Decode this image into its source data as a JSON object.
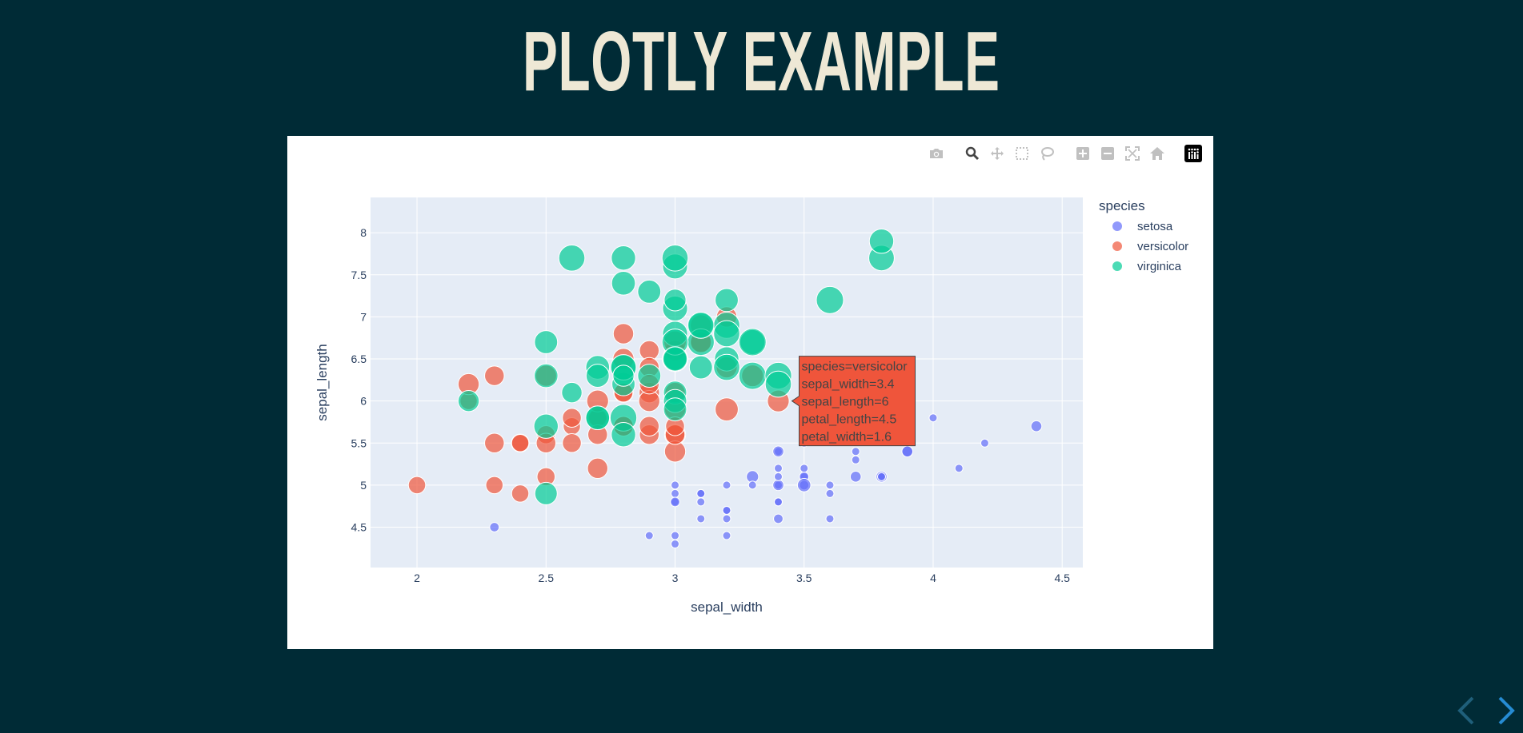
{
  "slide": {
    "title": "PLOTLY EXAMPLE"
  },
  "modebar": {
    "buttons": [
      {
        "name": "camera-icon",
        "title": "Download plot as a png"
      },
      {
        "name": "zoom-icon",
        "title": "Zoom"
      },
      {
        "name": "pan-icon",
        "title": "Pan"
      },
      {
        "name": "box-select-icon",
        "title": "Box Select"
      },
      {
        "name": "lasso-select-icon",
        "title": "Lasso Select"
      },
      {
        "name": "zoom-in-icon",
        "title": "Zoom in"
      },
      {
        "name": "zoom-out-icon",
        "title": "Zoom out"
      },
      {
        "name": "autoscale-icon",
        "title": "Autoscale"
      },
      {
        "name": "reset-axes-icon",
        "title": "Reset axes"
      },
      {
        "name": "plotly-logo-icon",
        "title": "Produced with Plotly"
      }
    ]
  },
  "nav": {
    "prev": "previous-slide-arrow-icon",
    "next": "next-slide-arrow-icon"
  },
  "colors": {
    "background": "#002b36",
    "title": "#eee8d5",
    "plot_bg": "#e5ecf6",
    "setosa": "#636efa",
    "versicolor": "#ef553b",
    "virginica": "#00cc96",
    "arrow_dim": "#1f5f7a",
    "arrow": "#268bd2"
  },
  "chart_data": {
    "type": "scatter",
    "title": "",
    "xlabel": "sepal_width",
    "ylabel": "sepal_length",
    "xlim": [
      1.82,
      4.58
    ],
    "ylim": [
      4.02,
      8.42
    ],
    "xticks": [
      "2",
      "2.5",
      "3",
      "3.5",
      "4",
      "4.5"
    ],
    "yticks": [
      "4.5",
      "5",
      "5.5",
      "6",
      "6.5",
      "7",
      "7.5",
      "8"
    ],
    "legend": {
      "title": "species",
      "placement": "top-right"
    },
    "grid": true,
    "series": [
      {
        "name": "setosa",
        "color": "#636efa",
        "points": [
          [
            3.5,
            5.1,
            0.2
          ],
          [
            3.0,
            4.9,
            0.2
          ],
          [
            3.2,
            4.7,
            0.2
          ],
          [
            3.1,
            4.6,
            0.2
          ],
          [
            3.6,
            5.0,
            0.2
          ],
          [
            3.9,
            5.4,
            0.4
          ],
          [
            3.4,
            4.6,
            0.3
          ],
          [
            3.4,
            5.0,
            0.2
          ],
          [
            2.9,
            4.4,
            0.2
          ],
          [
            3.1,
            4.9,
            0.1
          ],
          [
            3.7,
            5.4,
            0.2
          ],
          [
            3.4,
            4.8,
            0.2
          ],
          [
            3.0,
            4.8,
            0.1
          ],
          [
            3.0,
            4.3,
            0.1
          ],
          [
            4.0,
            5.8,
            0.2
          ],
          [
            4.4,
            5.7,
            0.4
          ],
          [
            3.9,
            5.4,
            0.4
          ],
          [
            3.5,
            5.1,
            0.3
          ],
          [
            3.8,
            5.7,
            0.3
          ],
          [
            3.8,
            5.1,
            0.3
          ],
          [
            3.4,
            5.4,
            0.2
          ],
          [
            3.7,
            5.1,
            0.4
          ],
          [
            3.6,
            4.6,
            0.2
          ],
          [
            3.3,
            5.1,
            0.5
          ],
          [
            3.4,
            4.8,
            0.2
          ],
          [
            3.0,
            5.0,
            0.2
          ],
          [
            3.4,
            5.0,
            0.4
          ],
          [
            3.5,
            5.2,
            0.2
          ],
          [
            3.4,
            5.2,
            0.2
          ],
          [
            3.2,
            4.7,
            0.2
          ],
          [
            3.1,
            4.8,
            0.2
          ],
          [
            3.4,
            5.4,
            0.4
          ],
          [
            4.1,
            5.2,
            0.1
          ],
          [
            4.2,
            5.5,
            0.2
          ],
          [
            3.1,
            4.9,
            0.2
          ],
          [
            3.2,
            5.0,
            0.2
          ],
          [
            3.5,
            5.5,
            0.2
          ],
          [
            3.6,
            4.9,
            0.1
          ],
          [
            3.0,
            4.4,
            0.2
          ],
          [
            3.4,
            5.1,
            0.2
          ],
          [
            3.5,
            5.0,
            0.3
          ],
          [
            2.3,
            4.5,
            0.3
          ],
          [
            3.2,
            4.4,
            0.2
          ],
          [
            3.5,
            5.0,
            0.6
          ],
          [
            3.8,
            5.1,
            0.4
          ],
          [
            3.0,
            4.8,
            0.3
          ],
          [
            3.8,
            5.1,
            0.2
          ],
          [
            3.2,
            4.6,
            0.2
          ],
          [
            3.7,
            5.3,
            0.2
          ],
          [
            3.3,
            5.0,
            0.2
          ]
        ]
      },
      {
        "name": "versicolor",
        "color": "#ef553b",
        "points": [
          [
            3.2,
            7.0,
            1.4
          ],
          [
            3.2,
            6.4,
            1.5
          ],
          [
            3.1,
            6.9,
            1.5
          ],
          [
            2.3,
            5.5,
            1.3
          ],
          [
            2.8,
            6.5,
            1.5
          ],
          [
            2.8,
            5.7,
            1.3
          ],
          [
            3.3,
            6.3,
            1.6
          ],
          [
            2.4,
            4.9,
            1.0
          ],
          [
            2.9,
            6.6,
            1.3
          ],
          [
            2.7,
            5.2,
            1.4
          ],
          [
            2.0,
            5.0,
            1.0
          ],
          [
            3.0,
            5.9,
            1.5
          ],
          [
            2.2,
            6.0,
            1.0
          ],
          [
            2.9,
            6.1,
            1.4
          ],
          [
            2.9,
            5.6,
            1.3
          ],
          [
            3.1,
            6.7,
            1.4
          ],
          [
            3.0,
            5.6,
            1.5
          ],
          [
            2.7,
            5.8,
            1.0
          ],
          [
            2.2,
            6.2,
            1.5
          ],
          [
            2.5,
            5.6,
            1.1
          ],
          [
            3.2,
            5.9,
            1.8
          ],
          [
            2.8,
            6.1,
            1.3
          ],
          [
            2.5,
            6.3,
            1.5
          ],
          [
            2.8,
            6.1,
            1.2
          ],
          [
            2.9,
            6.4,
            1.3
          ],
          [
            3.0,
            6.6,
            1.4
          ],
          [
            2.8,
            6.8,
            1.4
          ],
          [
            3.0,
            6.7,
            1.7
          ],
          [
            2.9,
            6.0,
            1.5
          ],
          [
            2.6,
            5.7,
            1.0
          ],
          [
            2.4,
            5.5,
            1.1
          ],
          [
            2.4,
            5.5,
            1.0
          ],
          [
            2.7,
            5.8,
            1.2
          ],
          [
            2.7,
            6.0,
            1.6
          ],
          [
            3.0,
            5.4,
            1.5
          ],
          [
            3.4,
            6.0,
            1.6
          ],
          [
            3.1,
            6.7,
            1.5
          ],
          [
            2.3,
            6.3,
            1.3
          ],
          [
            3.0,
            5.6,
            1.3
          ],
          [
            2.5,
            5.5,
            1.3
          ],
          [
            2.6,
            5.5,
            1.2
          ],
          [
            3.0,
            6.1,
            1.4
          ],
          [
            2.6,
            5.8,
            1.2
          ],
          [
            2.3,
            5.0,
            1.0
          ],
          [
            2.7,
            5.6,
            1.3
          ],
          [
            3.0,
            5.7,
            1.2
          ],
          [
            2.9,
            5.7,
            1.3
          ],
          [
            2.9,
            6.2,
            1.3
          ],
          [
            2.5,
            5.1,
            1.1
          ],
          [
            2.8,
            5.7,
            1.3
          ]
        ]
      },
      {
        "name": "virginica",
        "color": "#00cc96",
        "points": [
          [
            3.3,
            6.3,
            2.5
          ],
          [
            2.7,
            5.8,
            1.9
          ],
          [
            3.0,
            7.1,
            2.1
          ],
          [
            2.9,
            6.3,
            1.8
          ],
          [
            3.0,
            6.5,
            2.2
          ],
          [
            3.0,
            7.6,
            2.1
          ],
          [
            2.5,
            4.9,
            1.7
          ],
          [
            2.9,
            7.3,
            1.8
          ],
          [
            2.5,
            6.7,
            1.8
          ],
          [
            3.6,
            7.2,
            2.5
          ],
          [
            3.2,
            6.5,
            2.0
          ],
          [
            2.7,
            6.4,
            1.9
          ],
          [
            3.0,
            6.8,
            2.1
          ],
          [
            2.5,
            5.7,
            2.0
          ],
          [
            2.8,
            5.8,
            2.4
          ],
          [
            3.2,
            6.4,
            2.3
          ],
          [
            3.0,
            6.5,
            1.8
          ],
          [
            3.8,
            7.7,
            2.2
          ],
          [
            2.6,
            7.7,
            2.3
          ],
          [
            2.2,
            6.0,
            1.5
          ],
          [
            3.2,
            6.9,
            2.3
          ],
          [
            2.8,
            5.6,
            2.0
          ],
          [
            2.8,
            7.7,
            2.0
          ],
          [
            2.7,
            6.3,
            1.8
          ],
          [
            3.3,
            6.7,
            2.1
          ],
          [
            3.2,
            7.2,
            1.8
          ],
          [
            2.8,
            6.2,
            1.8
          ],
          [
            3.0,
            6.1,
            1.8
          ],
          [
            2.8,
            6.4,
            2.1
          ],
          [
            3.0,
            7.2,
            1.6
          ],
          [
            2.8,
            7.4,
            1.9
          ],
          [
            3.8,
            7.9,
            2.0
          ],
          [
            2.8,
            6.4,
            2.2
          ],
          [
            2.8,
            6.3,
            1.5
          ],
          [
            2.6,
            6.1,
            1.4
          ],
          [
            3.0,
            7.7,
            2.3
          ],
          [
            3.4,
            6.3,
            2.4
          ],
          [
            3.1,
            6.4,
            1.8
          ],
          [
            3.0,
            6.0,
            1.8
          ],
          [
            3.1,
            6.9,
            2.1
          ],
          [
            3.1,
            6.7,
            2.4
          ],
          [
            3.1,
            6.9,
            2.3
          ],
          [
            2.7,
            5.8,
            1.9
          ],
          [
            3.2,
            6.8,
            2.3
          ],
          [
            3.3,
            6.7,
            2.5
          ],
          [
            3.0,
            6.7,
            2.3
          ],
          [
            2.5,
            6.3,
            1.9
          ],
          [
            3.0,
            6.5,
            2.0
          ],
          [
            3.4,
            6.2,
            2.3
          ],
          [
            3.0,
            5.9,
            1.8
          ]
        ]
      }
    ],
    "size_variable": "petal_width",
    "hover_tooltip": {
      "species": "versicolor",
      "lines": [
        "species=versicolor",
        "sepal_width=3.4",
        "sepal_length=6",
        "petal_length=4.5",
        "petal_width=1.6"
      ],
      "anchor": [
        3.4,
        6.0
      ]
    }
  }
}
